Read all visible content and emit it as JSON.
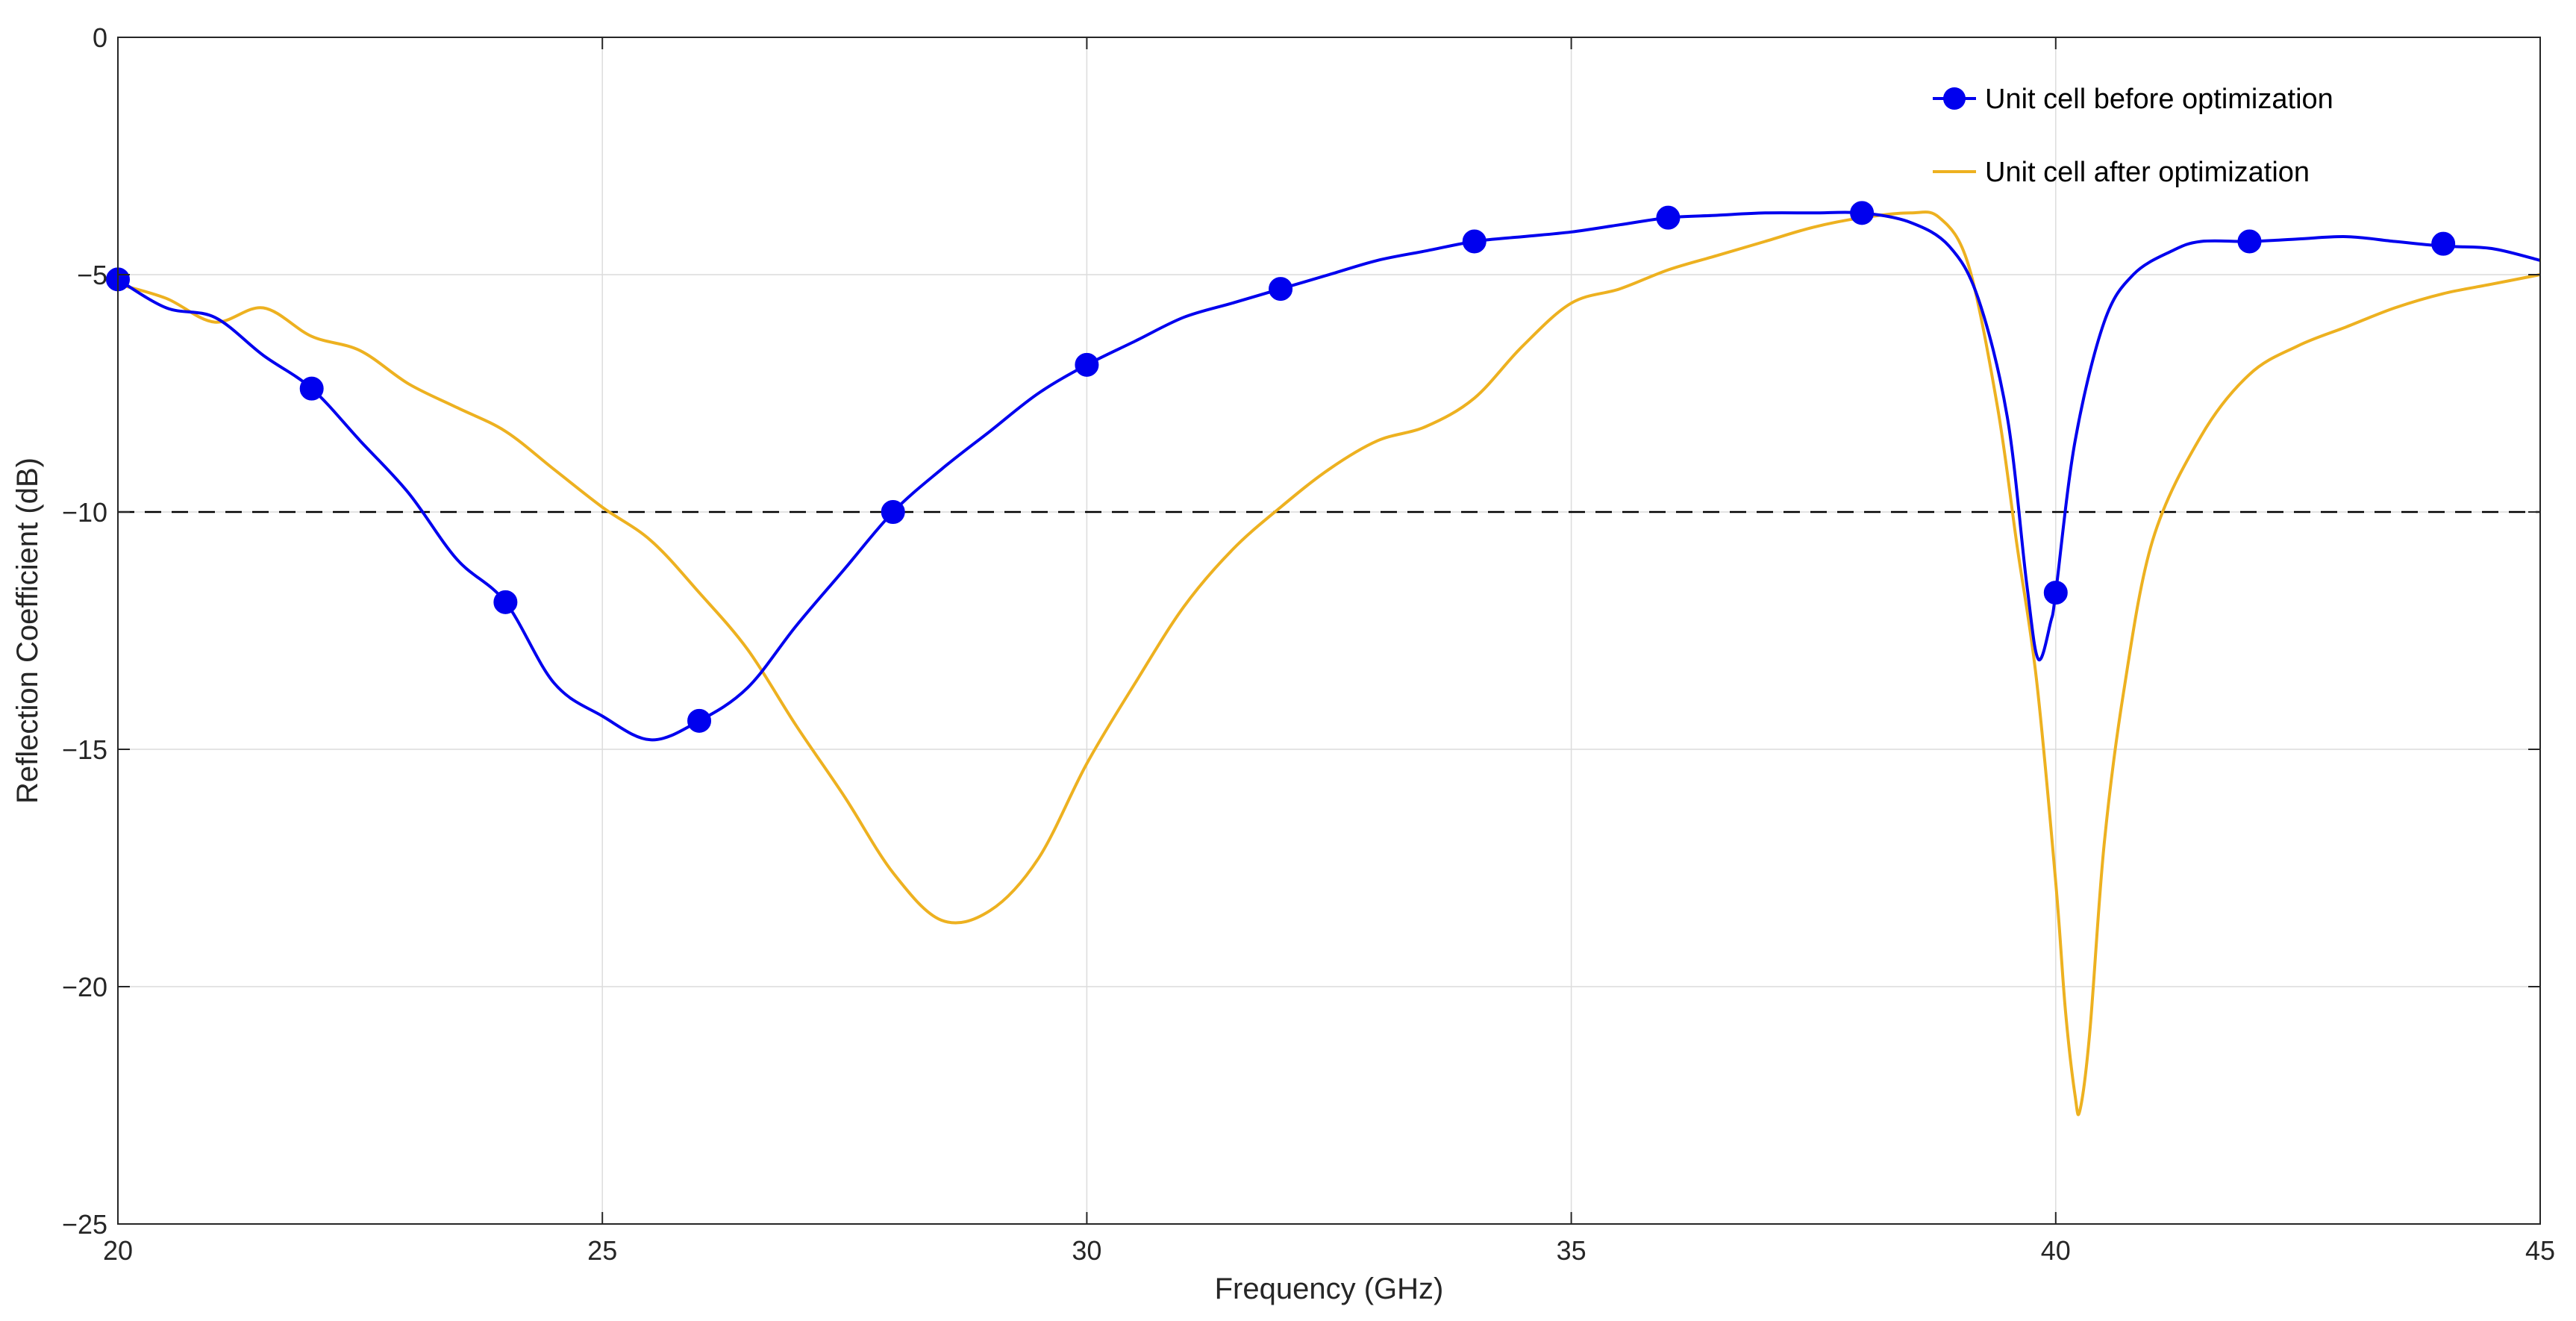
{
  "chart_data": {
    "type": "line",
    "title": "",
    "xlabel": "Frequency (GHz)",
    "ylabel": "Reflection Coefficient (dB)",
    "xlim": [
      20,
      45
    ],
    "ylim": [
      -25,
      0
    ],
    "xticks": [
      "20",
      "25",
      "30",
      "35",
      "40",
      "45"
    ],
    "yticks": [
      "0",
      "−5",
      "−10",
      "−15",
      "−20",
      "−25"
    ],
    "grid": true,
    "legend_position": "top-right",
    "reference_line": {
      "y": -10,
      "style": "dashed",
      "color": "#000000"
    },
    "series": [
      {
        "name": "Unit cell before optimization",
        "color": "#0000EE",
        "marker": "circle",
        "x": [
          20,
          20.5,
          21,
          21.5,
          22,
          22.5,
          23,
          23.5,
          24,
          24.5,
          25,
          25.5,
          26,
          26.5,
          27,
          27.5,
          28,
          28.5,
          29,
          29.5,
          30,
          30.5,
          31,
          31.5,
          32,
          32.5,
          33,
          33.5,
          34,
          34.5,
          35,
          35.5,
          36,
          36.5,
          37,
          37.5,
          38,
          38.5,
          38.9,
          39.2,
          39.5,
          39.7,
          39.82,
          39.95,
          40,
          40.2,
          40.5,
          40.8,
          41.2,
          41.5,
          42,
          42.5,
          43,
          43.5,
          44,
          44.5,
          45
        ],
        "y": [
          -5.1,
          -5.7,
          -5.9,
          -6.7,
          -7.4,
          -8.5,
          -9.6,
          -11.0,
          -11.9,
          -13.6,
          -14.3,
          -14.8,
          -14.4,
          -13.7,
          -12.4,
          -11.2,
          -10.0,
          -9.1,
          -8.3,
          -7.5,
          -6.9,
          -6.4,
          -5.9,
          -5.6,
          -5.3,
          -5.0,
          -4.7,
          -4.5,
          -4.3,
          -4.2,
          -4.1,
          -3.95,
          -3.8,
          -3.75,
          -3.7,
          -3.7,
          -3.7,
          -3.9,
          -4.4,
          -5.5,
          -8.0,
          -11.5,
          -13.1,
          -12.3,
          -11.7,
          -8.5,
          -6.0,
          -5.0,
          -4.5,
          -4.3,
          -4.3,
          -4.25,
          -4.2,
          -4.3,
          -4.4,
          -4.45,
          -4.7
        ],
        "marker_x": [
          20,
          22,
          24,
          26,
          28,
          30,
          32,
          34,
          36,
          38,
          40,
          42,
          44
        ],
        "marker_y": [
          -5.1,
          -7.4,
          -11.9,
          -14.4,
          -10.0,
          -6.9,
          -5.3,
          -4.3,
          -3.8,
          -3.7,
          -11.7,
          -4.3,
          -4.35
        ]
      },
      {
        "name": "Unit cell after optimization",
        "color": "#EDB120",
        "marker": "none",
        "x": [
          20,
          20.5,
          21,
          21.5,
          22,
          22.5,
          23,
          23.5,
          24,
          24.5,
          25,
          25.5,
          26,
          26.5,
          27,
          27.5,
          28,
          28.5,
          29,
          29.5,
          30,
          30.5,
          31,
          31.5,
          32,
          32.5,
          33,
          33.5,
          34,
          34.5,
          35,
          35.5,
          36,
          36.5,
          37,
          37.5,
          38,
          38.5,
          38.8,
          39.1,
          39.4,
          39.6,
          39.8,
          40.0,
          40.1,
          40.2,
          40.25,
          40.35,
          40.5,
          40.7,
          41.0,
          41.5,
          42,
          42.5,
          43,
          43.5,
          44,
          44.5,
          45
        ],
        "y": [
          -5.2,
          -5.5,
          -6.0,
          -5.7,
          -6.3,
          -6.6,
          -7.3,
          -7.8,
          -8.3,
          -9.1,
          -9.9,
          -10.6,
          -11.7,
          -12.9,
          -14.5,
          -16.0,
          -17.6,
          -18.6,
          -18.4,
          -17.3,
          -15.3,
          -13.6,
          -12.0,
          -10.8,
          -9.9,
          -9.1,
          -8.5,
          -8.2,
          -7.6,
          -6.5,
          -5.6,
          -5.3,
          -4.9,
          -4.6,
          -4.3,
          -4.0,
          -3.8,
          -3.7,
          -3.8,
          -4.8,
          -7.8,
          -10.7,
          -13.5,
          -17.8,
          -20.5,
          -22.3,
          -22.6,
          -21.0,
          -17.0,
          -13.8,
          -10.6,
          -8.4,
          -7.1,
          -6.5,
          -6.1,
          -5.7,
          -5.4,
          -5.2,
          -5.0
        ]
      }
    ]
  }
}
